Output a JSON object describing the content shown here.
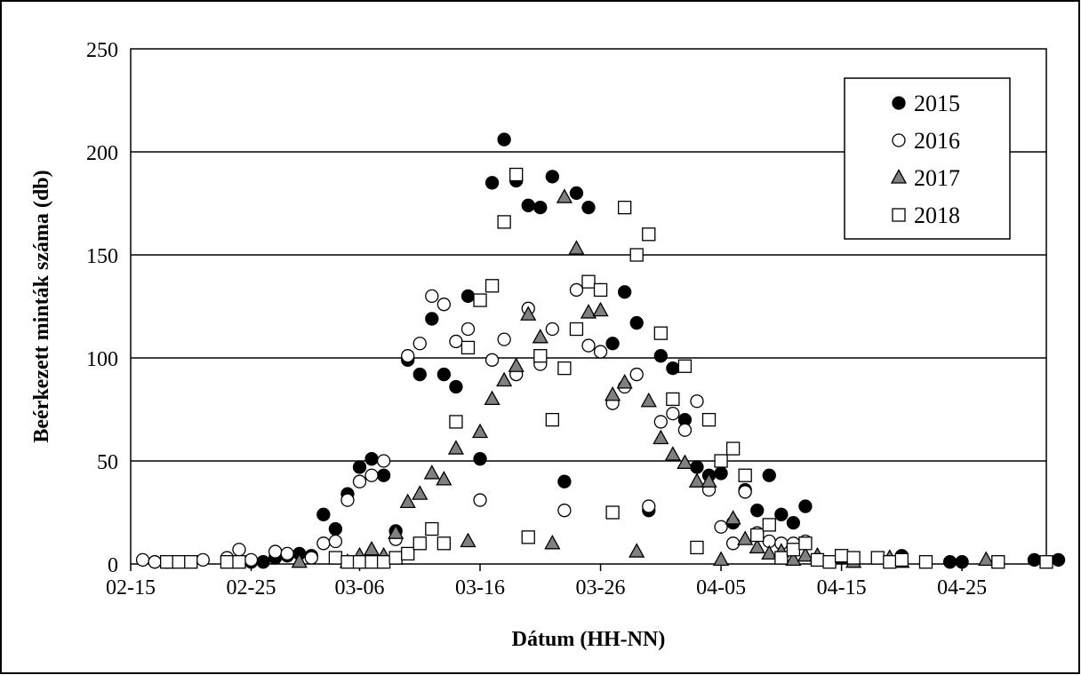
{
  "chart_data": {
    "type": "scatter",
    "title": "",
    "xlabel": "Dátum (HH-NN)",
    "ylabel": "Beérkezett minták száma (db)",
    "xlim": [
      "02-15",
      "05-02"
    ],
    "ylim": [
      0,
      250
    ],
    "x_ticks": [
      "02-15",
      "02-25",
      "03-06",
      "03-16",
      "03-26",
      "04-05",
      "04-15",
      "04-25"
    ],
    "y_ticks": [
      0,
      50,
      100,
      150,
      200,
      250
    ],
    "grid": "horizontal",
    "legend_position": "top-right",
    "series": [
      {
        "name": "2015",
        "marker": "circle",
        "fill": "#000000",
        "points": [
          [
            "02-18",
            1
          ],
          [
            "02-25",
            1
          ],
          [
            "02-26",
            1
          ],
          [
            "02-27",
            3
          ],
          [
            "02-28",
            4
          ],
          [
            "03-01",
            5
          ],
          [
            "03-02",
            4
          ],
          [
            "03-03",
            24
          ],
          [
            "03-04",
            17
          ],
          [
            "03-05",
            34
          ],
          [
            "03-06",
            47
          ],
          [
            "03-07",
            51
          ],
          [
            "03-08",
            43
          ],
          [
            "03-09",
            16
          ],
          [
            "03-10",
            99
          ],
          [
            "03-11",
            92
          ],
          [
            "03-12",
            119
          ],
          [
            "03-13",
            92
          ],
          [
            "03-14",
            86
          ],
          [
            "03-15",
            130
          ],
          [
            "03-16",
            51
          ],
          [
            "03-17",
            185
          ],
          [
            "03-18",
            206
          ],
          [
            "03-19",
            186
          ],
          [
            "03-20",
            174
          ],
          [
            "03-21",
            173
          ],
          [
            "03-22",
            188
          ],
          [
            "03-23",
            40
          ],
          [
            "03-24",
            180
          ],
          [
            "03-25",
            173
          ],
          [
            "03-26",
            133
          ],
          [
            "03-27",
            107
          ],
          [
            "03-28",
            132
          ],
          [
            "03-29",
            117
          ],
          [
            "03-30",
            26
          ],
          [
            "03-31",
            101
          ],
          [
            "04-01",
            95
          ],
          [
            "04-02",
            70
          ],
          [
            "04-03",
            47
          ],
          [
            "04-04",
            43
          ],
          [
            "04-05",
            44
          ],
          [
            "04-06",
            20
          ],
          [
            "04-07",
            36
          ],
          [
            "04-08",
            26
          ],
          [
            "04-09",
            43
          ],
          [
            "04-10",
            24
          ],
          [
            "04-11",
            20
          ],
          [
            "04-12",
            28
          ],
          [
            "04-20",
            4
          ],
          [
            "04-24",
            1
          ],
          [
            "04-25",
            1
          ],
          [
            "05-01",
            2
          ],
          [
            "05-03",
            2
          ]
        ]
      },
      {
        "name": "2016",
        "marker": "circle",
        "fill": "#ffffff",
        "points": [
          [
            "02-16",
            2
          ],
          [
            "02-17",
            1
          ],
          [
            "02-21",
            2
          ],
          [
            "02-23",
            3
          ],
          [
            "02-24",
            7
          ],
          [
            "02-25",
            2
          ],
          [
            "02-27",
            6
          ],
          [
            "02-28",
            5
          ],
          [
            "03-02",
            3
          ],
          [
            "03-03",
            10
          ],
          [
            "03-04",
            11
          ],
          [
            "03-05",
            31
          ],
          [
            "03-06",
            40
          ],
          [
            "03-07",
            43
          ],
          [
            "03-08",
            50
          ],
          [
            "03-09",
            12
          ],
          [
            "03-10",
            101
          ],
          [
            "03-11",
            107
          ],
          [
            "03-12",
            130
          ],
          [
            "03-13",
            126
          ],
          [
            "03-14",
            108
          ],
          [
            "03-15",
            114
          ],
          [
            "03-16",
            31
          ],
          [
            "03-17",
            99
          ],
          [
            "03-18",
            109
          ],
          [
            "03-19",
            92
          ],
          [
            "03-20",
            124
          ],
          [
            "03-21",
            97
          ],
          [
            "03-22",
            114
          ],
          [
            "03-23",
            26
          ],
          [
            "03-24",
            133
          ],
          [
            "03-25",
            106
          ],
          [
            "03-26",
            103
          ],
          [
            "03-27",
            78
          ],
          [
            "03-28",
            86
          ],
          [
            "03-29",
            92
          ],
          [
            "03-30",
            28
          ],
          [
            "03-31",
            69
          ],
          [
            "04-01",
            73
          ],
          [
            "04-02",
            65
          ],
          [
            "04-03",
            79
          ],
          [
            "04-04",
            36
          ],
          [
            "04-05",
            18
          ],
          [
            "04-06",
            10
          ],
          [
            "04-07",
            35
          ],
          [
            "04-08",
            15
          ],
          [
            "04-09",
            11
          ],
          [
            "04-10",
            10
          ],
          [
            "04-11",
            10
          ],
          [
            "04-12",
            11
          ]
        ]
      },
      {
        "name": "2017",
        "marker": "triangle",
        "fill": "#808080",
        "points": [
          [
            "03-01",
            1
          ],
          [
            "03-05",
            1
          ],
          [
            "03-06",
            4
          ],
          [
            "03-07",
            7
          ],
          [
            "03-08",
            4
          ],
          [
            "03-09",
            15
          ],
          [
            "03-10",
            30
          ],
          [
            "03-11",
            34
          ],
          [
            "03-12",
            44
          ],
          [
            "03-13",
            41
          ],
          [
            "03-14",
            56
          ],
          [
            "03-15",
            11
          ],
          [
            "03-16",
            64
          ],
          [
            "03-17",
            80
          ],
          [
            "03-18",
            89
          ],
          [
            "03-19",
            96
          ],
          [
            "03-20",
            121
          ],
          [
            "03-21",
            110
          ],
          [
            "03-22",
            10
          ],
          [
            "03-23",
            178
          ],
          [
            "03-24",
            153
          ],
          [
            "03-25",
            122
          ],
          [
            "03-26",
            123
          ],
          [
            "03-27",
            82
          ],
          [
            "03-28",
            88
          ],
          [
            "03-29",
            6
          ],
          [
            "03-30",
            79
          ],
          [
            "03-31",
            61
          ],
          [
            "04-01",
            53
          ],
          [
            "04-02",
            49
          ],
          [
            "04-03",
            40
          ],
          [
            "04-04",
            40
          ],
          [
            "04-05",
            2
          ],
          [
            "04-06",
            22
          ],
          [
            "04-07",
            12
          ],
          [
            "04-08",
            8
          ],
          [
            "04-09",
            5
          ],
          [
            "04-10",
            6
          ],
          [
            "04-11",
            2
          ],
          [
            "04-12",
            4
          ],
          [
            "04-13",
            4
          ],
          [
            "04-15",
            3
          ],
          [
            "04-16",
            1
          ],
          [
            "04-19",
            3
          ],
          [
            "04-20",
            1
          ],
          [
            "04-27",
            2
          ]
        ]
      },
      {
        "name": "2018",
        "marker": "square",
        "fill": "#ffffff",
        "points": [
          [
            "02-18",
            1
          ],
          [
            "02-19",
            1
          ],
          [
            "02-20",
            1
          ],
          [
            "02-23",
            1
          ],
          [
            "02-24",
            1
          ],
          [
            "03-04",
            3
          ],
          [
            "03-05",
            1
          ],
          [
            "03-06",
            1
          ],
          [
            "03-07",
            1
          ],
          [
            "03-08",
            1
          ],
          [
            "03-09",
            3
          ],
          [
            "03-10",
            5
          ],
          [
            "03-11",
            10
          ],
          [
            "03-12",
            17
          ],
          [
            "03-13",
            10
          ],
          [
            "03-14",
            69
          ],
          [
            "03-15",
            105
          ],
          [
            "03-16",
            128
          ],
          [
            "03-17",
            135
          ],
          [
            "03-18",
            166
          ],
          [
            "03-19",
            189
          ],
          [
            "03-20",
            13
          ],
          [
            "03-21",
            101
          ],
          [
            "03-22",
            70
          ],
          [
            "03-23",
            95
          ],
          [
            "03-24",
            114
          ],
          [
            "03-25",
            137
          ],
          [
            "03-26",
            133
          ],
          [
            "03-27",
            25
          ],
          [
            "03-28",
            173
          ],
          [
            "03-29",
            150
          ],
          [
            "03-30",
            160
          ],
          [
            "03-31",
            112
          ],
          [
            "04-01",
            80
          ],
          [
            "04-02",
            96
          ],
          [
            "04-03",
            8
          ],
          [
            "04-04",
            70
          ],
          [
            "04-05",
            50
          ],
          [
            "04-06",
            56
          ],
          [
            "04-07",
            43
          ],
          [
            "04-08",
            14
          ],
          [
            "04-09",
            19
          ],
          [
            "04-10",
            3
          ],
          [
            "04-11",
            7
          ],
          [
            "04-12",
            10
          ],
          [
            "04-13",
            2
          ],
          [
            "04-14",
            1
          ],
          [
            "04-15",
            4
          ],
          [
            "04-16",
            3
          ],
          [
            "04-18",
            3
          ],
          [
            "04-19",
            1
          ],
          [
            "04-20",
            2
          ],
          [
            "04-22",
            1
          ],
          [
            "04-28",
            1
          ],
          [
            "05-02",
            1
          ]
        ]
      }
    ]
  }
}
